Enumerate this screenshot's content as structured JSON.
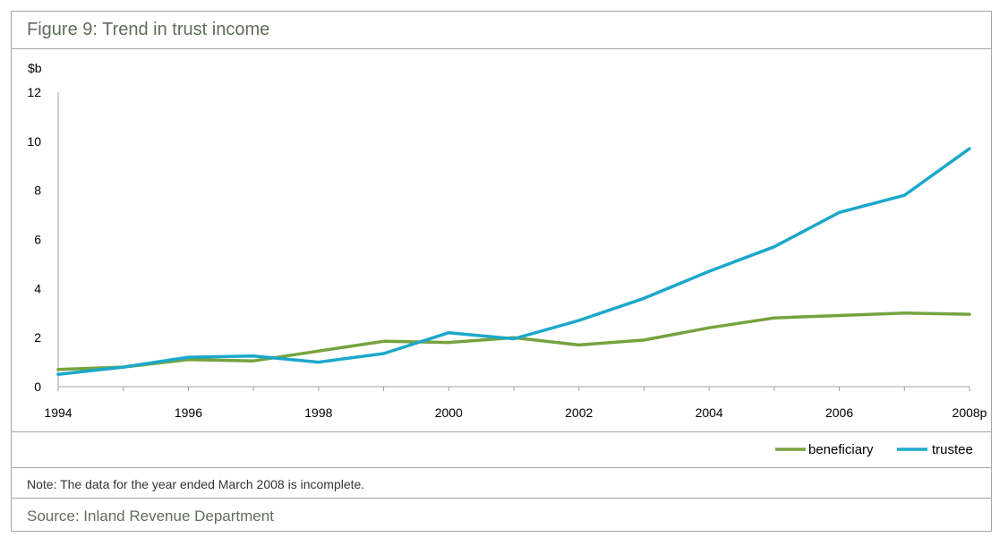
{
  "header": {
    "title": "Figure 9: Trend in trust income"
  },
  "footer": {
    "note": "Note: The data for the year ended March 2008 is incomplete.",
    "source": "Source: Inland Revenue Department"
  },
  "chart_data": {
    "type": "line",
    "ylabel": "$b",
    "ylim": [
      0,
      12
    ],
    "yticks": [
      "0",
      "2",
      "4",
      "6",
      "8",
      "10",
      "12"
    ],
    "x": [
      "1994",
      "1995",
      "1996",
      "1997",
      "1998",
      "1999",
      "2000",
      "2001",
      "2002",
      "2003",
      "2004",
      "2005",
      "2006",
      "2007",
      "2008p"
    ],
    "xtick_labels": [
      "1994",
      "1996",
      "1998",
      "2000",
      "2002",
      "2004",
      "2006",
      "2008p"
    ],
    "legend_position": "bottom-right",
    "grid": false,
    "series": [
      {
        "name": "beneficiary",
        "color": "#76a33e",
        "values": [
          0.7,
          0.8,
          1.1,
          1.05,
          1.45,
          1.85,
          1.8,
          2.0,
          1.7,
          1.9,
          2.4,
          2.8,
          2.9,
          3.0,
          2.95
        ]
      },
      {
        "name": "trustee",
        "color": "#1ba8cb",
        "values": [
          0.5,
          0.8,
          1.2,
          1.25,
          1.0,
          1.35,
          2.2,
          1.95,
          2.7,
          3.6,
          4.7,
          5.7,
          7.1,
          7.8,
          9.7
        ]
      }
    ]
  }
}
